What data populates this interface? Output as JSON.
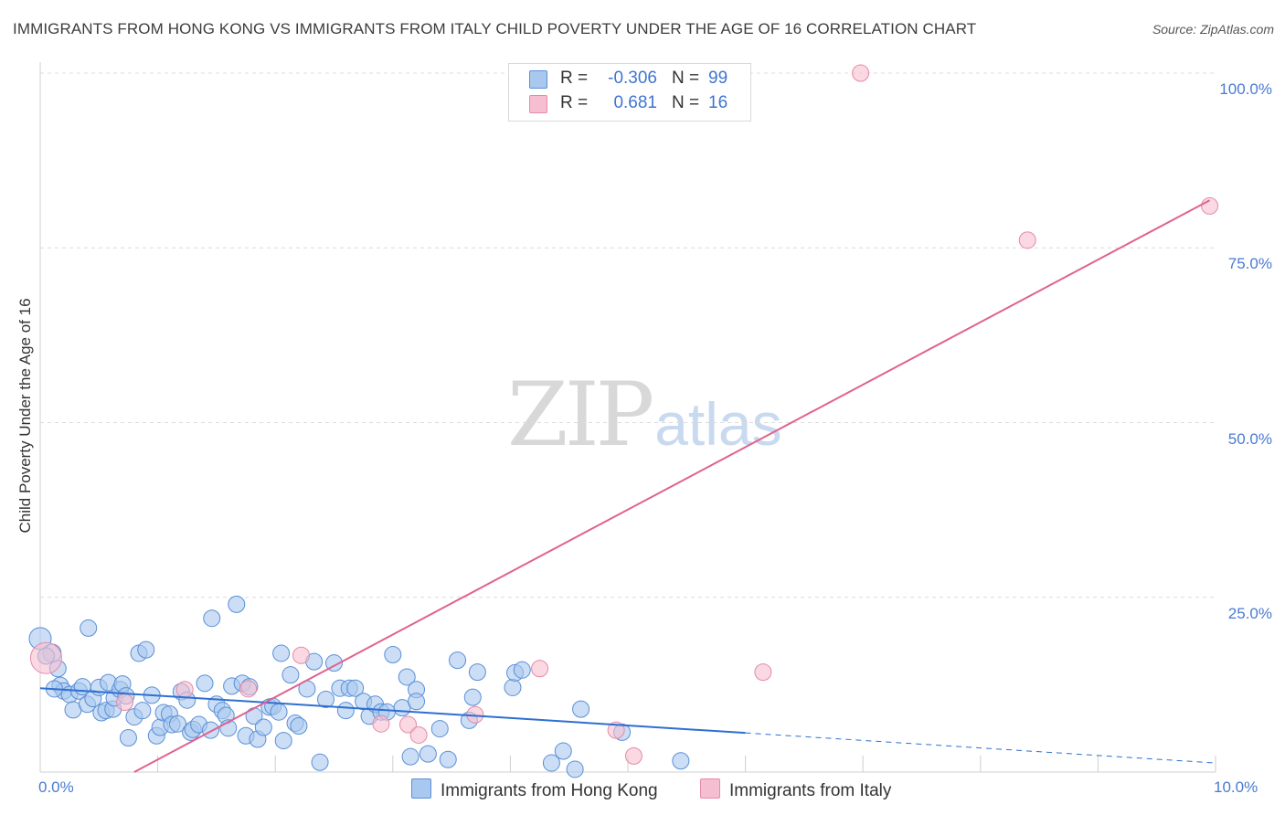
{
  "title": "IMMIGRANTS FROM HONG KONG VS IMMIGRANTS FROM ITALY CHILD POVERTY UNDER THE AGE OF 16 CORRELATION CHART",
  "source": "Source: ZipAtlas.com",
  "watermark": {
    "zip": "ZIP",
    "atlas": "atlas"
  },
  "colors": {
    "series1_fill": "#a9c8ef",
    "series1_stroke": "#5a8fd6",
    "series1_line": "#2e6fd1",
    "series2_fill": "#f6bfd1",
    "series2_stroke": "#e48aaa",
    "series2_line": "#e0628f",
    "grid": "#dcdcdc",
    "tick_text": "#4a7bd0"
  },
  "legend": {
    "rows": [
      {
        "r_label": "R =",
        "r_value": "-0.306",
        "n_label": "N =",
        "n_value": "99"
      },
      {
        "r_label": "R =",
        "r_value": "0.681",
        "n_label": "N =",
        "n_value": "16"
      }
    ]
  },
  "chart_data": {
    "type": "scatter",
    "title": "IMMIGRANTS FROM HONG KONG VS IMMIGRANTS FROM ITALY CHILD POVERTY UNDER THE AGE OF 16 CORRELATION CHART",
    "xlabel": "",
    "ylabel": "Child Poverty Under the Age of 16",
    "xlim": [
      0,
      10
    ],
    "ylim": [
      0,
      100
    ],
    "x_ticks": [
      "0.0%",
      "10.0%"
    ],
    "y_ticks": [
      {
        "value": 25,
        "label": "25.0%"
      },
      {
        "value": 50,
        "label": "50.0%"
      },
      {
        "value": 75,
        "label": "75.0%"
      },
      {
        "value": 100,
        "label": "100.0%"
      }
    ],
    "legend_position": "bottom-center",
    "series": [
      {
        "name": "Immigrants from Hong Kong",
        "r": -0.306,
        "n": 99,
        "trend": {
          "x0": 0.0,
          "y0": 12.0,
          "x1": 6.0,
          "y1": 5.6,
          "dashed_to_x": 10.0,
          "dashed_to_y": 1.3
        },
        "points": [
          [
            0.0,
            19.1,
            12
          ],
          [
            0.1,
            17.0,
            10
          ],
          [
            0.15,
            14.8,
            9
          ],
          [
            0.17,
            12.4,
            9
          ],
          [
            0.2,
            11.6,
            9
          ],
          [
            0.25,
            11.1,
            9
          ],
          [
            0.28,
            8.9,
            9
          ],
          [
            0.33,
            11.6,
            9
          ],
          [
            0.36,
            12.2,
            9
          ],
          [
            0.4,
            9.7,
            9
          ],
          [
            0.41,
            20.6,
            9
          ],
          [
            0.45,
            10.5,
            9
          ],
          [
            0.5,
            12.1,
            9
          ],
          [
            0.52,
            8.5,
            9
          ],
          [
            0.56,
            8.8,
            9
          ],
          [
            0.58,
            12.8,
            9
          ],
          [
            0.62,
            9.0,
            9
          ],
          [
            0.63,
            10.6,
            9
          ],
          [
            0.68,
            11.8,
            9
          ],
          [
            0.7,
            12.6,
            9
          ],
          [
            0.73,
            10.9,
            9
          ],
          [
            0.75,
            4.9,
            9
          ],
          [
            0.8,
            7.9,
            9
          ],
          [
            0.84,
            17.0,
            9
          ],
          [
            0.87,
            8.8,
            9
          ],
          [
            0.9,
            17.5,
            9
          ],
          [
            0.95,
            11.0,
            9
          ],
          [
            0.99,
            5.2,
            9
          ],
          [
            1.02,
            6.4,
            9
          ],
          [
            1.05,
            8.5,
            9
          ],
          [
            1.1,
            8.3,
            9
          ],
          [
            1.12,
            6.8,
            9
          ],
          [
            1.17,
            6.9,
            9
          ],
          [
            1.2,
            11.5,
            9
          ],
          [
            1.25,
            10.3,
            9
          ],
          [
            1.28,
            5.7,
            9
          ],
          [
            1.3,
            6.1,
            9
          ],
          [
            1.35,
            6.8,
            9
          ],
          [
            1.4,
            12.7,
            9
          ],
          [
            1.45,
            6.0,
            9
          ],
          [
            1.46,
            22.0,
            9
          ],
          [
            1.5,
            9.7,
            9
          ],
          [
            1.55,
            8.8,
            9
          ],
          [
            1.58,
            8.1,
            9
          ],
          [
            1.6,
            6.3,
            9
          ],
          [
            1.63,
            12.3,
            9
          ],
          [
            1.67,
            24.0,
            9
          ],
          [
            1.72,
            12.7,
            9
          ],
          [
            1.75,
            5.2,
            9
          ],
          [
            1.78,
            12.2,
            9
          ],
          [
            1.82,
            8.0,
            9
          ],
          [
            1.85,
            4.7,
            9
          ],
          [
            1.9,
            6.4,
            9
          ],
          [
            1.95,
            9.3,
            9
          ],
          [
            1.98,
            9.4,
            9
          ],
          [
            2.03,
            8.6,
            9
          ],
          [
            2.05,
            17.0,
            9
          ],
          [
            2.07,
            4.5,
            9
          ],
          [
            2.13,
            13.9,
            9
          ],
          [
            2.17,
            7.0,
            9
          ],
          [
            2.2,
            6.6,
            9
          ],
          [
            2.27,
            11.9,
            9
          ],
          [
            2.33,
            15.8,
            9
          ],
          [
            2.38,
            1.4,
            9
          ],
          [
            2.43,
            10.4,
            9
          ],
          [
            2.5,
            15.6,
            9
          ],
          [
            2.55,
            12.0,
            9
          ],
          [
            2.6,
            8.8,
            9
          ],
          [
            2.63,
            12.0,
            9
          ],
          [
            2.68,
            12.0,
            9
          ],
          [
            2.75,
            10.1,
            9
          ],
          [
            2.8,
            8.0,
            9
          ],
          [
            2.85,
            9.7,
            9
          ],
          [
            2.9,
            8.6,
            9
          ],
          [
            2.95,
            8.6,
            9
          ],
          [
            3.0,
            16.8,
            9
          ],
          [
            3.08,
            9.2,
            9
          ],
          [
            3.12,
            13.6,
            9
          ],
          [
            3.15,
            2.2,
            9
          ],
          [
            3.2,
            11.8,
            9
          ],
          [
            3.2,
            10.1,
            9
          ],
          [
            3.3,
            2.6,
            9
          ],
          [
            3.4,
            6.2,
            9
          ],
          [
            3.47,
            1.8,
            9
          ],
          [
            3.55,
            16.0,
            9
          ],
          [
            3.65,
            7.4,
            9
          ],
          [
            3.68,
            10.7,
            9
          ],
          [
            3.72,
            14.3,
            9
          ],
          [
            4.02,
            12.1,
            9
          ],
          [
            4.04,
            14.2,
            9
          ],
          [
            4.1,
            14.6,
            9
          ],
          [
            4.35,
            1.3,
            9
          ],
          [
            4.45,
            3.0,
            9
          ],
          [
            4.55,
            0.4,
            9
          ],
          [
            4.6,
            9.0,
            9
          ],
          [
            4.95,
            5.7,
            9
          ],
          [
            5.45,
            1.6,
            9
          ],
          [
            0.05,
            16.6,
            9
          ],
          [
            0.12,
            11.9,
            9
          ]
        ]
      },
      {
        "name": "Immigrants from Italy",
        "r": 0.681,
        "n": 16,
        "trend": {
          "x0": 0.8,
          "y0": 0.0,
          "x1": 9.95,
          "y1": 81.8
        },
        "points": [
          [
            0.05,
            16.3,
            17
          ],
          [
            0.72,
            10.0,
            9
          ],
          [
            1.23,
            11.8,
            9
          ],
          [
            1.77,
            11.9,
            9
          ],
          [
            2.22,
            16.7,
            9
          ],
          [
            2.9,
            6.9,
            9
          ],
          [
            3.13,
            6.8,
            9
          ],
          [
            3.22,
            5.3,
            9
          ],
          [
            3.7,
            8.2,
            9
          ],
          [
            4.25,
            14.8,
            9
          ],
          [
            4.9,
            6.0,
            9
          ],
          [
            5.05,
            2.3,
            9
          ],
          [
            6.15,
            14.3,
            9
          ],
          [
            6.98,
            100.0,
            9
          ],
          [
            8.4,
            76.1,
            9
          ],
          [
            9.95,
            81.0,
            9
          ]
        ]
      }
    ]
  }
}
